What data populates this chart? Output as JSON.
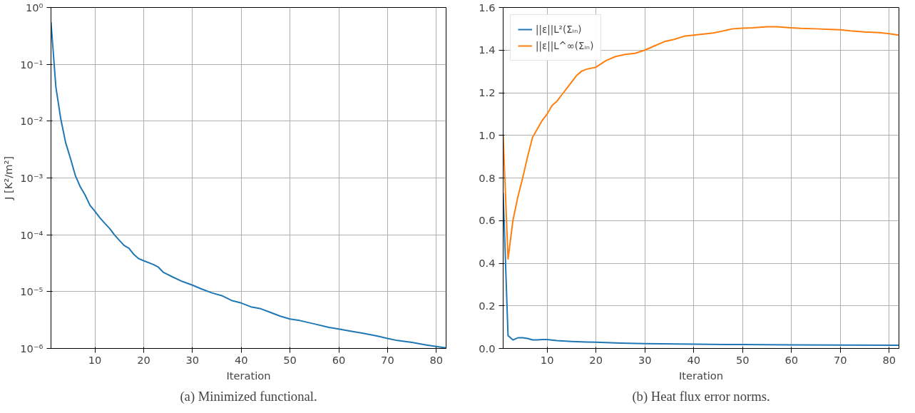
{
  "chart_data": [
    {
      "type": "line",
      "xlabel": "Iteration",
      "ylabel": "J [K²/m²]",
      "log": "y",
      "grid": true,
      "legend": false,
      "xlim": [
        1,
        82
      ],
      "xticks": [
        10,
        20,
        30,
        40,
        50,
        60,
        70,
        80
      ],
      "ylim": [
        1e-06,
        1
      ],
      "yticks": [
        {
          "value": 1e-06,
          "label": "10⁻⁶"
        },
        {
          "value": 1e-05,
          "label": "10⁻⁵"
        },
        {
          "value": 0.0001,
          "label": "10⁻⁴"
        },
        {
          "value": 0.001,
          "label": "10⁻³"
        },
        {
          "value": 0.01,
          "label": "10⁻²"
        },
        {
          "value": 0.1,
          "label": "10⁻¹"
        },
        {
          "value": 1,
          "label": "10⁰"
        }
      ],
      "annotations": [
        "(a) Minimized functional."
      ],
      "series": [
        {
          "color": "#1f77b4",
          "x": [
            1,
            2,
            3,
            4,
            5,
            6,
            7,
            8,
            9,
            10,
            11,
            12,
            13,
            14,
            15,
            16,
            17,
            18,
            19,
            20,
            22,
            23,
            24,
            26,
            28,
            30,
            32,
            34,
            36,
            38,
            40,
            42,
            44,
            46,
            48,
            50,
            52,
            55,
            58,
            60,
            62,
            65,
            68,
            70,
            72,
            75,
            78,
            80,
            82
          ],
          "values": [
            0.55,
            0.04,
            0.011,
            0.0042,
            0.0022,
            0.0011,
            0.0007,
            0.0005,
            0.00033,
            0.00026,
            0.0002,
            0.00016,
            0.00013,
            0.0001,
            8e-05,
            6.5e-05,
            5.8e-05,
            4.5e-05,
            3.8e-05,
            3.5e-05,
            3e-05,
            2.7e-05,
            2.2e-05,
            1.8e-05,
            1.5e-05,
            1.3e-05,
            1.1e-05,
            9.5e-06,
            8.5e-06,
            7e-06,
            6.3e-06,
            5.4e-06,
            5e-06,
            4.3e-06,
            3.7e-06,
            3.3e-06,
            3.1e-06,
            2.7e-06,
            2.35e-06,
            2.2e-06,
            2.05e-06,
            1.85e-06,
            1.65e-06,
            1.5e-06,
            1.38e-06,
            1.28e-06,
            1.15e-06,
            1.08e-06,
            1.02e-06
          ]
        }
      ]
    },
    {
      "type": "line",
      "xlabel": "Iteration",
      "grid": true,
      "legend": "top left",
      "xlim": [
        1,
        82
      ],
      "xticks": [
        10,
        20,
        30,
        40,
        50,
        60,
        70,
        80
      ],
      "ylim": [
        0,
        1.6
      ],
      "yticks": [
        {
          "value": 0,
          "label": "0.0"
        },
        {
          "value": 0.2,
          "label": "0.2"
        },
        {
          "value": 0.4,
          "label": "0.4"
        },
        {
          "value": 0.6,
          "label": "0.6"
        },
        {
          "value": 0.8,
          "label": "0.8"
        },
        {
          "value": 1,
          "label": "1.0"
        },
        {
          "value": 1.2,
          "label": "1.2"
        },
        {
          "value": 1.4,
          "label": "1.4"
        },
        {
          "value": 1.6,
          "label": "1.6"
        }
      ],
      "annotations": [
        "(b) Heat flux error norms."
      ],
      "series": [
        {
          "name": "||ε||L²(Σᵢₙ)",
          "color": "#1f77b4",
          "x": [
            1,
            2,
            3,
            4,
            5,
            6,
            7,
            8,
            9,
            10,
            12,
            15,
            18,
            20,
            25,
            30,
            40,
            50,
            60,
            70,
            82
          ],
          "values": [
            0.73,
            0.06,
            0.04,
            0.05,
            0.05,
            0.047,
            0.04,
            0.04,
            0.042,
            0.042,
            0.037,
            0.033,
            0.03,
            0.029,
            0.025,
            0.023,
            0.02,
            0.018,
            0.017,
            0.016,
            0.015
          ]
        },
        {
          "name": "||ε||L^∞(Σᵢₙ)",
          "color": "#ff7f0e",
          "x": [
            1,
            2,
            3,
            4,
            5,
            6,
            7,
            8,
            9,
            10,
            11,
            12,
            13,
            14,
            15,
            16,
            17,
            18,
            20,
            22,
            24,
            26,
            28,
            30,
            32,
            34,
            36,
            38,
            40,
            42,
            44,
            46,
            48,
            50,
            52,
            55,
            57,
            60,
            62,
            65,
            68,
            70,
            72,
            75,
            78,
            80,
            82
          ],
          "values": [
            1.0,
            0.42,
            0.6,
            0.71,
            0.8,
            0.9,
            0.99,
            1.03,
            1.07,
            1.1,
            1.14,
            1.16,
            1.19,
            1.22,
            1.25,
            1.28,
            1.3,
            1.31,
            1.32,
            1.35,
            1.37,
            1.38,
            1.385,
            1.4,
            1.42,
            1.44,
            1.45,
            1.465,
            1.47,
            1.475,
            1.48,
            1.49,
            1.5,
            1.503,
            1.505,
            1.51,
            1.51,
            1.505,
            1.502,
            1.5,
            1.497,
            1.495,
            1.49,
            1.485,
            1.482,
            1.477,
            1.47
          ]
        }
      ]
    }
  ]
}
